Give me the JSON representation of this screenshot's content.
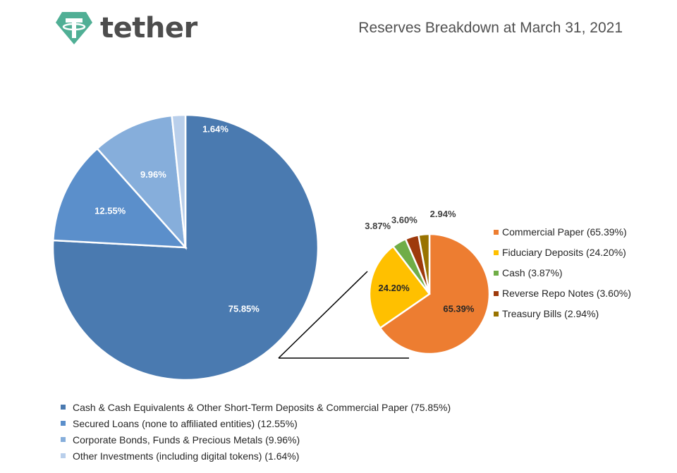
{
  "header": {
    "logo_name": "tether",
    "logo_icon": "tether-t-icon",
    "title": "Reserves Breakdown at March 31, 2021"
  },
  "colors": {
    "brand": "#50af95",
    "connector_line": "#000000"
  },
  "chart_data": [
    {
      "type": "pie",
      "title": "",
      "slices": [
        {
          "label": "Cash & Cash Equivalents & Other Short-Term Deposits & Commercial Paper (75.85%)",
          "value": 75.85,
          "display": "75.85%",
          "color": "#4a7ab0"
        },
        {
          "label": "Secured Loans (none to affiliated entities) (12.55%)",
          "value": 12.55,
          "display": "12.55%",
          "color": "#5b8fcb"
        },
        {
          "label": "Corporate Bonds, Funds & Precious Metals (9.96%)",
          "value": 9.96,
          "display": "9.96%",
          "color": "#86aedb"
        },
        {
          "label": "Other Investments (including digital tokens) (1.64%)",
          "value": 1.64,
          "display": "1.64%",
          "color": "#b9cfeb"
        }
      ],
      "legend_position": "bottom-left"
    },
    {
      "type": "pie",
      "title": "",
      "slices": [
        {
          "label": "Commercial Paper (65.39%)",
          "value": 65.39,
          "display": "65.39%",
          "color": "#ed7d31"
        },
        {
          "label": "Fiduciary Deposits (24.20%)",
          "value": 24.2,
          "display": "24.20%",
          "color": "#ffc000"
        },
        {
          "label": "Cash (3.87%)",
          "value": 3.87,
          "display": "3.87%",
          "color": "#70ad47"
        },
        {
          "label": "Reverse Repo Notes (3.60%)",
          "value": 3.6,
          "display": "3.60%",
          "color": "#9e3a0c"
        },
        {
          "label": "Treasury Bills (2.94%)",
          "value": 2.94,
          "display": "2.94%",
          "color": "#997300"
        }
      ],
      "legend_position": "right"
    }
  ]
}
